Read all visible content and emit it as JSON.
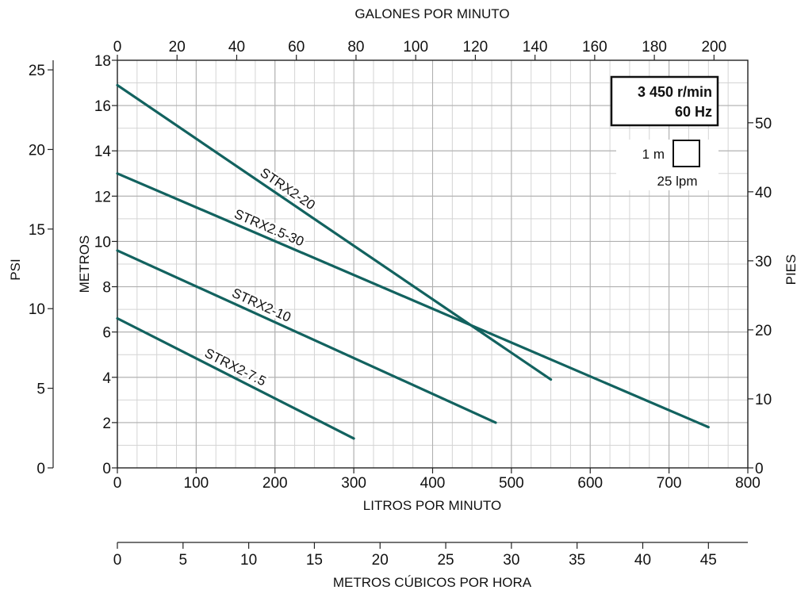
{
  "chart_data": {
    "type": "line",
    "top_axis_title": "GALONES POR MINUTO",
    "bottom_axis_title": "LITROS POR MINUTO",
    "cubic_axis_title": "METROS CÚBICOS POR HORA",
    "left_axis_title": "METROS",
    "psi_axis_title": "PSI",
    "right_axis_title": "PIES",
    "x_lpm_ticks": [
      "0",
      "100",
      "200",
      "300",
      "400",
      "500",
      "600",
      "700",
      "800"
    ],
    "x_gpm_ticks": [
      "0",
      "20",
      "40",
      "60",
      "80",
      "100",
      "120",
      "140",
      "160",
      "180",
      "200"
    ],
    "y_m_ticks": [
      "0",
      "2",
      "4",
      "6",
      "8",
      "10",
      "12",
      "14",
      "16",
      "18"
    ],
    "y_ft_ticks": [
      "0",
      "10",
      "20",
      "30",
      "40",
      "50"
    ],
    "y_psi_ticks": [
      "0",
      "5",
      "10",
      "15",
      "20",
      "25"
    ],
    "x_m3h_ticks": [
      "0",
      "5",
      "10",
      "15",
      "20",
      "25",
      "30",
      "35",
      "40",
      "45"
    ],
    "xlim_lpm": [
      0,
      800
    ],
    "ylim_m": [
      0,
      18
    ],
    "grid": true,
    "speed_box": {
      "line1": "3 450 r/min",
      "line2": "60 Hz"
    },
    "grid_scale": {
      "vertical": "1 m",
      "horizontal": "25 lpm"
    },
    "line_color": "#12625f",
    "series": [
      {
        "name": "STRX2-20",
        "x": [
          0,
          550
        ],
        "y": [
          16.9,
          3.9
        ]
      },
      {
        "name": "STRX2.5-30",
        "x": [
          0,
          750
        ],
        "y": [
          13.0,
          1.8
        ]
      },
      {
        "name": "STRX2-10",
        "x": [
          0,
          480
        ],
        "y": [
          9.6,
          2.0
        ]
      },
      {
        "name": "STRX2-7.5",
        "x": [
          0,
          300
        ],
        "y": [
          6.6,
          1.3
        ]
      }
    ]
  }
}
